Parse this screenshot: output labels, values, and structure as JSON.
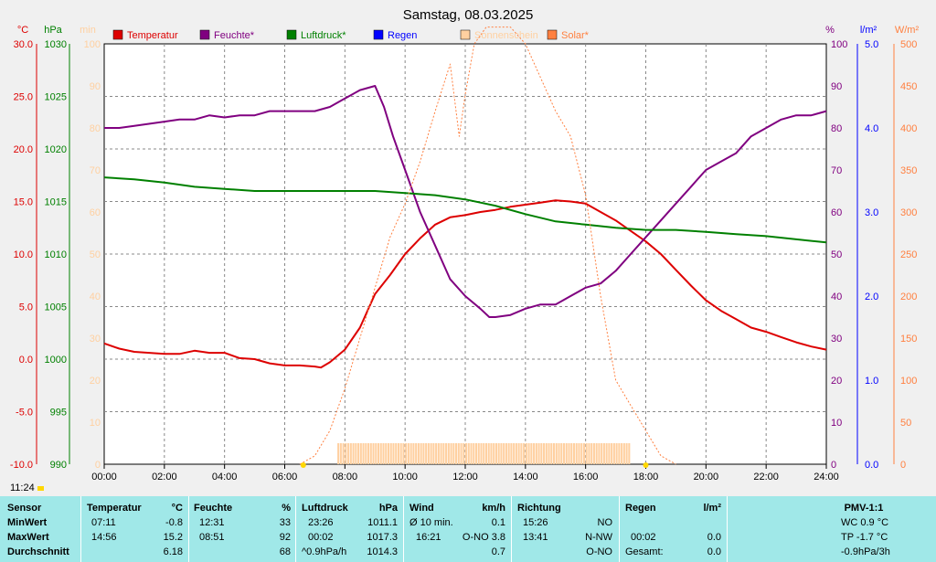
{
  "title": "Samstag, 08.03.2025",
  "time_now": "11:24",
  "chart_data": {
    "type": "line",
    "title": "Samstag, 08.03.2025",
    "x_range_hours": [
      0,
      24
    ],
    "x_ticks": [
      "00:00",
      "02:00",
      "04:00",
      "06:00",
      "08:00",
      "10:00",
      "12:00",
      "14:00",
      "16:00",
      "18:00",
      "20:00",
      "22:00",
      "24:00"
    ],
    "grid": true,
    "legend": {
      "placement": "top",
      "items": [
        {
          "name": "Temperatur",
          "color": "#dd0000"
        },
        {
          "name": "Feuchte*",
          "color": "#800080"
        },
        {
          "name": "Luftdruck*",
          "color": "#008000"
        },
        {
          "name": "Regen",
          "color": "#0000ff"
        },
        {
          "name": "Sonnenschein",
          "color": "#ffd0a0"
        },
        {
          "name": "Solar*",
          "color": "#ff8040"
        }
      ]
    },
    "axes": {
      "temp": {
        "unit": "°C",
        "color": "#dd0000",
        "range": [
          -10,
          30
        ],
        "ticks": [
          "30.0",
          "25.0",
          "20.0",
          "15.0",
          "10.0",
          "5.0",
          "0.0",
          "-5.0",
          "-10.0"
        ]
      },
      "pressure": {
        "unit": "hPa",
        "color": "#008000",
        "range": [
          990,
          1030
        ],
        "ticks": [
          "1030",
          "1025",
          "1020",
          "1015",
          "1010",
          "1005",
          "1000",
          "995",
          "990"
        ]
      },
      "minutes": {
        "unit": "min",
        "color": "#ffd0a0",
        "range": [
          0,
          100
        ],
        "ticks": [
          "100",
          "90",
          "80",
          "70",
          "60",
          "50",
          "40",
          "30",
          "20",
          "10",
          "0"
        ]
      },
      "humidity": {
        "unit": "%",
        "color": "#800080",
        "range": [
          0,
          100
        ],
        "ticks": [
          "100",
          "90",
          "80",
          "70",
          "60",
          "50",
          "40",
          "30",
          "20",
          "10",
          "0"
        ]
      },
      "rain": {
        "unit": "l/m²",
        "color": "#0000ff",
        "range": [
          0,
          5
        ],
        "ticks": [
          "5.0",
          "4.0",
          "3.0",
          "2.0",
          "1.0",
          "0.0"
        ]
      },
      "solar": {
        "unit": "W/m²",
        "color": "#ff8040",
        "range": [
          0,
          500
        ],
        "ticks": [
          "500",
          "450",
          "400",
          "350",
          "300",
          "250",
          "200",
          "150",
          "100",
          "50",
          "0"
        ]
      }
    },
    "series": [
      {
        "name": "Temperatur",
        "axis": "temp",
        "color": "#dd0000",
        "points": [
          [
            0,
            1.5
          ],
          [
            0.5,
            1.0
          ],
          [
            1,
            0.7
          ],
          [
            2,
            0.5
          ],
          [
            2.5,
            0.5
          ],
          [
            3,
            0.8
          ],
          [
            3.5,
            0.6
          ],
          [
            4,
            0.6
          ],
          [
            4.5,
            0.1
          ],
          [
            5,
            0.0
          ],
          [
            5.5,
            -0.4
          ],
          [
            6,
            -0.6
          ],
          [
            6.5,
            -0.6
          ],
          [
            7,
            -0.7
          ],
          [
            7.2,
            -0.8
          ],
          [
            7.5,
            -0.3
          ],
          [
            8,
            0.9
          ],
          [
            8.5,
            3.0
          ],
          [
            9,
            6.2
          ],
          [
            9.5,
            8.0
          ],
          [
            10,
            10.0
          ],
          [
            10.5,
            11.5
          ],
          [
            11,
            12.8
          ],
          [
            11.5,
            13.5
          ],
          [
            12,
            13.7
          ],
          [
            12.5,
            14.0
          ],
          [
            13,
            14.2
          ],
          [
            13.5,
            14.5
          ],
          [
            14,
            14.7
          ],
          [
            14.5,
            14.9
          ],
          [
            15,
            15.1
          ],
          [
            15.5,
            15.0
          ],
          [
            16,
            14.8
          ],
          [
            16.5,
            14.0
          ],
          [
            17,
            13.2
          ],
          [
            17.5,
            12.2
          ],
          [
            18,
            11.2
          ],
          [
            18.5,
            10.0
          ],
          [
            19,
            8.5
          ],
          [
            19.5,
            7.0
          ],
          [
            20,
            5.6
          ],
          [
            20.5,
            4.6
          ],
          [
            21,
            3.8
          ],
          [
            21.5,
            3.0
          ],
          [
            22,
            2.6
          ],
          [
            22.5,
            2.1
          ],
          [
            23,
            1.6
          ],
          [
            23.5,
            1.2
          ],
          [
            24,
            0.9
          ]
        ]
      },
      {
        "name": "Feuchte*",
        "axis": "humidity",
        "color": "#800080",
        "points": [
          [
            0,
            80
          ],
          [
            0.5,
            80
          ],
          [
            1,
            80.5
          ],
          [
            2,
            81.5
          ],
          [
            2.5,
            82
          ],
          [
            3,
            82
          ],
          [
            3.5,
            83
          ],
          [
            4,
            82.5
          ],
          [
            4.5,
            83
          ],
          [
            5,
            83
          ],
          [
            5.5,
            84
          ],
          [
            6,
            84
          ],
          [
            7,
            84
          ],
          [
            7.5,
            85
          ],
          [
            8,
            87
          ],
          [
            8.5,
            89
          ],
          [
            9,
            90
          ],
          [
            9.3,
            85
          ],
          [
            9.6,
            78
          ],
          [
            10,
            70
          ],
          [
            10.5,
            60
          ],
          [
            11,
            52
          ],
          [
            11.5,
            44
          ],
          [
            12,
            40
          ],
          [
            12.5,
            37
          ],
          [
            12.8,
            35
          ],
          [
            13,
            35
          ],
          [
            13.5,
            35.5
          ],
          [
            14,
            37
          ],
          [
            14.5,
            38
          ],
          [
            15,
            38
          ],
          [
            15.5,
            40
          ],
          [
            16,
            42
          ],
          [
            16.5,
            43
          ],
          [
            17,
            46
          ],
          [
            17.5,
            50
          ],
          [
            18,
            54
          ],
          [
            18.5,
            58
          ],
          [
            19,
            62
          ],
          [
            19.5,
            66
          ],
          [
            20,
            70
          ],
          [
            20.5,
            72
          ],
          [
            21,
            74
          ],
          [
            21.5,
            78
          ],
          [
            22,
            80
          ],
          [
            22.5,
            82
          ],
          [
            23,
            83
          ],
          [
            23.5,
            83
          ],
          [
            24,
            84
          ]
        ]
      },
      {
        "name": "Luftdruck*",
        "axis": "pressure",
        "color": "#008000",
        "points": [
          [
            0,
            1017.3
          ],
          [
            1,
            1017.1
          ],
          [
            2,
            1016.8
          ],
          [
            3,
            1016.4
          ],
          [
            4,
            1016.2
          ],
          [
            5,
            1016.0
          ],
          [
            6,
            1016.0
          ],
          [
            7,
            1016.0
          ],
          [
            8,
            1016.0
          ],
          [
            9,
            1016.0
          ],
          [
            10,
            1015.8
          ],
          [
            11,
            1015.6
          ],
          [
            12,
            1015.2
          ],
          [
            13,
            1014.6
          ],
          [
            14,
            1013.8
          ],
          [
            15,
            1013.1
          ],
          [
            16,
            1012.8
          ],
          [
            17,
            1012.5
          ],
          [
            18,
            1012.3
          ],
          [
            19,
            1012.3
          ],
          [
            20,
            1012.1
          ],
          [
            21,
            1011.9
          ],
          [
            22,
            1011.7
          ],
          [
            23,
            1011.4
          ],
          [
            24,
            1011.1
          ]
        ]
      },
      {
        "name": "Solar*",
        "axis": "solar",
        "color": "#ff8040",
        "points": [
          [
            6.5,
            0
          ],
          [
            7,
            10
          ],
          [
            7.5,
            40
          ],
          [
            8,
            90
          ],
          [
            8.5,
            150
          ],
          [
            9,
            210
          ],
          [
            9.5,
            270
          ],
          [
            10,
            310
          ],
          [
            10.5,
            360
          ],
          [
            11,
            420
          ],
          [
            11.5,
            476
          ],
          [
            11.8,
            390
          ],
          [
            12,
            440
          ],
          [
            12.3,
            500
          ],
          [
            12.7,
            520
          ],
          [
            13,
            520
          ],
          [
            13.5,
            520
          ],
          [
            14,
            500
          ],
          [
            14.5,
            460
          ],
          [
            15,
            420
          ],
          [
            15.5,
            390
          ],
          [
            16,
            320
          ],
          [
            16.5,
            200
          ],
          [
            17,
            100
          ],
          [
            17.5,
            70
          ],
          [
            18,
            40
          ],
          [
            18.5,
            10
          ],
          [
            19,
            0
          ]
        ]
      }
    ],
    "sunshine_bars": {
      "axis": "minutes",
      "from_hour": 7.75,
      "to_hour": 17.5,
      "value": 5
    },
    "sun_markers": [
      "06:37",
      "18:00"
    ]
  },
  "stats": {
    "headers": {
      "sensor": "Sensor",
      "temperatur": "Temperatur",
      "temp_unit": "°C",
      "feuchte": "Feuchte",
      "feuchte_unit": "%",
      "luftdruck": "Luftdruck",
      "luftdruck_unit": "hPa",
      "wind": "Wind",
      "wind_unit": "km/h",
      "richtung": "Richtung",
      "regen": "Regen",
      "regen_unit": "l/m²",
      "pmv": "PMV-1:1"
    },
    "rows": {
      "min": {
        "label": "MinWert",
        "temp_time": "07:11",
        "temp_val": "-0.8",
        "hum_time": "12:31",
        "hum_val": "33",
        "press_time": "23:26",
        "press_val": "1011.1",
        "wind_time": "Ø 10 min.",
        "wind_val": "0.1",
        "dir_time": "15:26",
        "dir_val": "NO",
        "rain_time": "",
        "rain_val": "",
        "pmv": "WC 0.9 °C"
      },
      "max": {
        "label": "MaxWert",
        "temp_time": "14:56",
        "temp_val": "15.2",
        "hum_time": "08:51",
        "hum_val": "92",
        "press_time": "00:02",
        "press_val": "1017.3",
        "wind_time": "16:21",
        "wind_val": "O-NO 3.8",
        "dir_time": "13:41",
        "dir_val": "N-NW",
        "rain_time": "00:02",
        "rain_val": "0.0",
        "pmv": "TP -1.7 °C"
      },
      "avg": {
        "label": "Durchschnitt",
        "temp_time": "",
        "temp_val": "6.18",
        "hum_time": "",
        "hum_val": "68",
        "press_time": "^0.9hPa/h",
        "press_val": "1014.3",
        "wind_time": "",
        "wind_val": "0.7",
        "dir_time": "",
        "dir_val": "O-NO",
        "rain_time": "Gesamt:",
        "rain_val": "0.0",
        "pmv": "-0.9hPa/3h"
      }
    }
  }
}
